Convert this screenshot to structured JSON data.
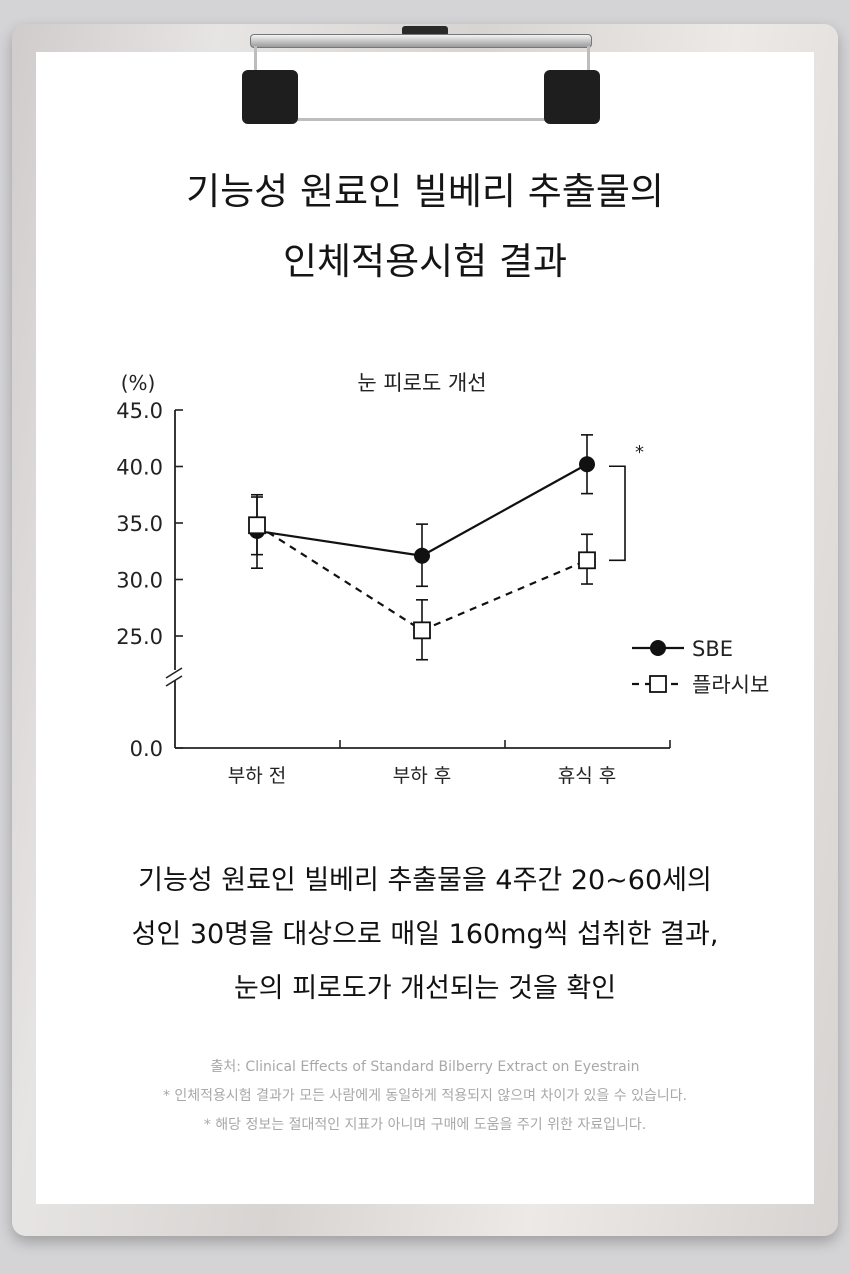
{
  "header": {
    "title_line1": "기능성 원료인 빌베리 추출물의",
    "title_line2": "인체적용시험 결과"
  },
  "chart_data": {
    "type": "line",
    "title": "눈 피로도 개선",
    "ylabel": "(%)",
    "xlabel": "",
    "categories": [
      "부하 전",
      "부하 후",
      "휴식 후"
    ],
    "yticks": [
      "45.0",
      "40.0",
      "35.0",
      "30.0",
      "25.0",
      "0.0"
    ],
    "ylim": [
      0,
      45
    ],
    "axis_break": true,
    "grid": false,
    "legend_position": "right",
    "significance_marker": "*",
    "series": [
      {
        "name": "SBE",
        "style": "solid-filled-circle",
        "values": [
          34.3,
          32.1,
          40.2
        ],
        "error": [
          [
            31.0,
            37.5
          ],
          [
            29.4,
            34.9
          ],
          [
            37.6,
            42.8
          ]
        ]
      },
      {
        "name": "플라시보",
        "style": "dashed-open-square",
        "values": [
          34.8,
          25.5,
          31.7
        ],
        "error": [
          [
            32.2,
            37.3
          ],
          [
            22.9,
            28.2
          ],
          [
            29.6,
            34.0
          ]
        ]
      }
    ],
    "colors": {
      "line": "#111111",
      "axis": "#222222"
    }
  },
  "description": {
    "line1": "기능성 원료인 빌베리 추출물을 4주간 20~60세의",
    "line2": "성인 30명을 대상으로 매일 160mg씩 섭취한 결과,",
    "line3": "눈의 피로도가 개선되는 것을 확인"
  },
  "notes": {
    "source": "출처: Clinical Effects of Standard Bilberry Extract on Eyestrain",
    "note1": "* 인체적용시험 결과가 모든 사람에게 동일하게 적용되지 않으며 차이가 있을 수 있습니다.",
    "note2": "* 해당 정보는 절대적인 지표가 아니며 구매에 도움을 주기 위한 자료입니다."
  }
}
